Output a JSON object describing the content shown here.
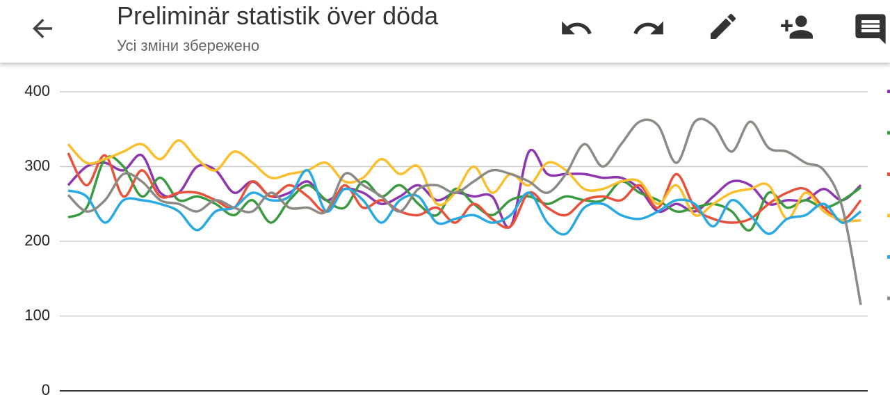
{
  "header": {
    "title": "Preliminär statistik över döda",
    "subtitle": "Усі зміни збережено"
  },
  "chart_data": {
    "type": "line",
    "ylim": [
      0,
      400
    ],
    "yticks": [
      0,
      100,
      200,
      300,
      400
    ],
    "grid": true,
    "smooth": true,
    "series": [
      {
        "color": "#8e35b0",
        "values": [
          275,
          300,
          305,
          295,
          315,
          265,
          265,
          300,
          295,
          265,
          280,
          260,
          265,
          280,
          255,
          270,
          265,
          250,
          260,
          275,
          255,
          265,
          260,
          260,
          220,
          320,
          290,
          290,
          290,
          285,
          285,
          270,
          240,
          250,
          240,
          260,
          280,
          275,
          250,
          255,
          255,
          270,
          255,
          275
        ]
      },
      {
        "color": "#3a9a3f",
        "values": [
          232,
          245,
          310,
          300,
          260,
          285,
          255,
          260,
          250,
          235,
          255,
          225,
          255,
          275,
          255,
          245,
          280,
          260,
          275,
          250,
          235,
          270,
          250,
          235,
          255,
          260,
          250,
          260,
          255,
          255,
          280,
          265,
          255,
          240,
          245,
          250,
          240,
          215,
          265,
          245,
          255,
          245,
          255,
          272
        ]
      },
      {
        "color": "#e8513a",
        "values": [
          318,
          275,
          315,
          260,
          295,
          260,
          265,
          265,
          255,
          245,
          280,
          260,
          275,
          260,
          240,
          275,
          245,
          255,
          240,
          235,
          245,
          225,
          250,
          230,
          220,
          265,
          245,
          235,
          255,
          260,
          255,
          275,
          245,
          290,
          245,
          230,
          225,
          230,
          250,
          265,
          270,
          245,
          228,
          255
        ]
      },
      {
        "color": "#fbbe2c",
        "values": [
          330,
          305,
          310,
          320,
          330,
          310,
          335,
          310,
          295,
          320,
          305,
          285,
          290,
          295,
          305,
          280,
          285,
          310,
          290,
          300,
          250,
          265,
          300,
          265,
          290,
          275,
          305,
          295,
          270,
          270,
          280,
          280,
          250,
          275,
          235,
          250,
          265,
          270,
          275,
          230,
          265,
          240,
          228,
          228
        ]
      },
      {
        "color": "#28a9e3",
        "values": [
          268,
          260,
          225,
          255,
          255,
          250,
          240,
          215,
          240,
          245,
          265,
          255,
          260,
          295,
          240,
          270,
          255,
          225,
          255,
          260,
          225,
          230,
          235,
          225,
          235,
          265,
          225,
          210,
          245,
          250,
          235,
          230,
          240,
          255,
          250,
          220,
          255,
          235,
          210,
          230,
          235,
          250,
          225,
          240
        ]
      },
      {
        "color": "#8d8a86",
        "values": [
          262,
          240,
          255,
          290,
          280,
          255,
          250,
          240,
          255,
          245,
          240,
          265,
          245,
          245,
          240,
          290,
          275,
          260,
          240,
          270,
          275,
          265,
          280,
          295,
          290,
          280,
          265,
          290,
          330,
          300,
          330,
          360,
          355,
          305,
          360,
          355,
          320,
          360,
          325,
          320,
          305,
          295,
          245,
          115
        ]
      }
    ]
  }
}
